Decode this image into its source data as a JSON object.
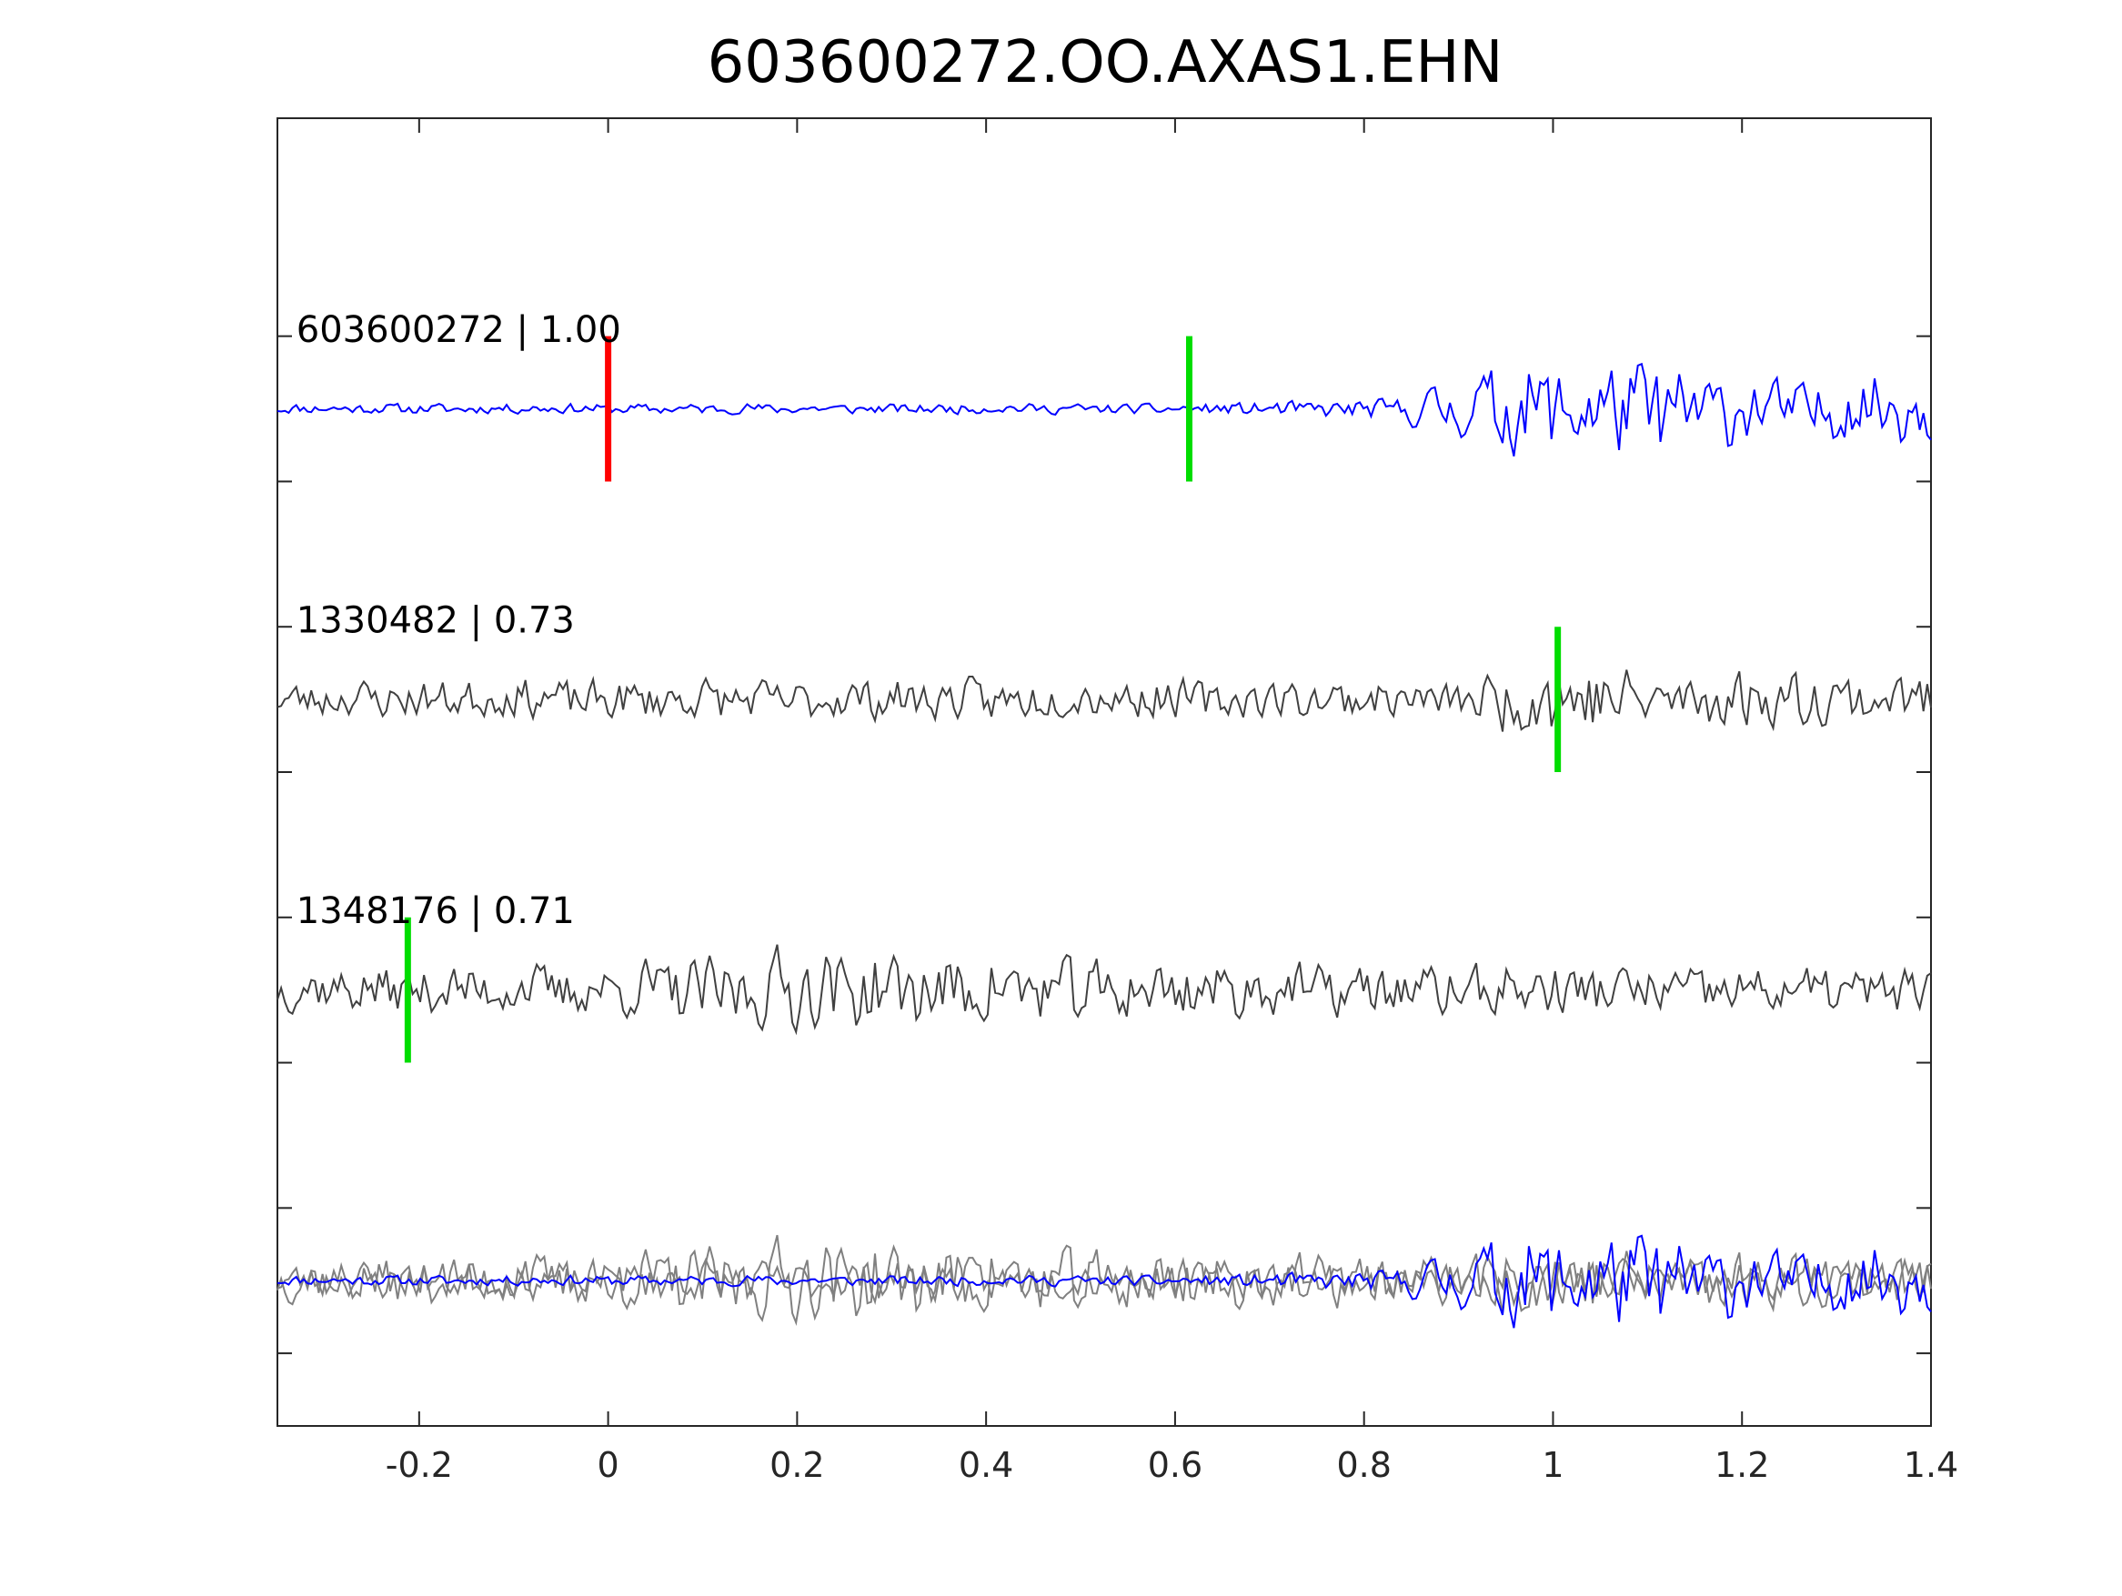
{
  "chart_data": {
    "type": "line",
    "title": "603600272.OO.AXAS1.EHN",
    "xlabel": "",
    "ylabel": "",
    "xlim": [
      -0.35,
      1.4
    ],
    "x_ticks": [
      -0.2,
      0,
      0.2,
      0.4,
      0.6,
      0.8,
      1,
      1.2,
      1.4
    ],
    "x_tick_labels": [
      "-0.2",
      "0",
      "0.2",
      "0.4",
      "0.6",
      "0.8",
      "1",
      "1.2",
      "1.4"
    ],
    "y_tick_count": 9,
    "y_tick_labels": [],
    "grid": false,
    "legend": "none",
    "colors": {
      "template": "#0000ff",
      "match": "#404040",
      "overlay_match": "#808080",
      "red_marker": "#ff0000",
      "green_marker": "#00dd00",
      "axes": "#262626"
    },
    "series": [
      {
        "label": "603600272 | 1.00",
        "offset": 3,
        "color": "#0000ff",
        "markers": [
          {
            "x": 0.0,
            "color": "#ff0000"
          },
          {
            "x": 0.615,
            "color": "#00dd00"
          }
        ],
        "envelope": [
          [
            -0.35,
            0.1
          ],
          [
            0.0,
            0.1
          ],
          [
            0.6,
            0.1
          ],
          [
            0.82,
            0.2
          ],
          [
            0.88,
            0.45
          ],
          [
            0.95,
            0.9
          ],
          [
            1.1,
            1.0
          ],
          [
            1.25,
            0.55
          ],
          [
            1.4,
            0.8
          ]
        ],
        "seed": 11
      },
      {
        "label": "1330482 | 0.73",
        "offset": 2,
        "color": "#404040",
        "markers": [
          {
            "x": 1.005,
            "color": "#00dd00"
          }
        ],
        "envelope": [
          [
            -0.35,
            0.35
          ],
          [
            0.0,
            0.4
          ],
          [
            0.5,
            0.4
          ],
          [
            0.9,
            0.35
          ],
          [
            1.0,
            0.9
          ],
          [
            1.1,
            0.6
          ],
          [
            1.4,
            0.5
          ]
        ],
        "seed": 23
      },
      {
        "label": "1348176 | 0.71",
        "offset": 1,
        "color": "#404040",
        "markers": [
          {
            "x": -0.212,
            "color": "#00dd00"
          }
        ],
        "envelope": [
          [
            -0.35,
            0.45
          ],
          [
            0.0,
            0.5
          ],
          [
            0.16,
            0.8
          ],
          [
            0.4,
            0.7
          ],
          [
            0.8,
            0.5
          ],
          [
            1.0,
            0.5
          ],
          [
            1.4,
            0.45
          ]
        ],
        "seed": 37
      }
    ],
    "overlay_offset": 0
  }
}
